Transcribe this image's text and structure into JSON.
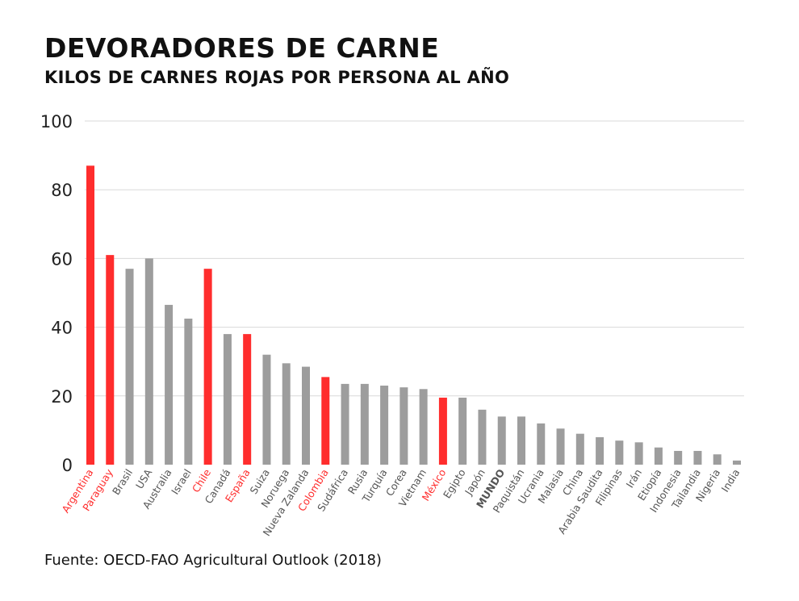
{
  "header": {
    "title": "DEVORADORES DE CARNE",
    "subtitle": "KILOS DE CARNES ROJAS POR PERSONA AL AÑO"
  },
  "footer": {
    "source": "Fuente: OECD-FAO Agricultural Outlook (2018)"
  },
  "colors": {
    "highlight": "#ff2d2d",
    "default": "#9d9d9d",
    "grid": "#d9d9d9",
    "axis_text": "#222222",
    "label_text": "#555555"
  },
  "chart_data": {
    "type": "bar",
    "title": "DEVORADORES DE CARNE",
    "subtitle": "KILOS DE CARNES ROJAS POR PERSONA AL AÑO",
    "xlabel": "",
    "ylabel": "",
    "ylim": [
      0,
      100
    ],
    "yticks": [
      0,
      20,
      40,
      60,
      80,
      100
    ],
    "grid": true,
    "categories": [
      "Argentina",
      "Paraguay",
      "Brasil",
      "USA",
      "Australia",
      "Israel",
      "Chile",
      "Canadá",
      "España",
      "Suiza",
      "Noruega",
      "Nueva Zalanda",
      "Colombia",
      "Sudáfrica",
      "Rusia",
      "Turquía",
      "Corea",
      "Vietnam",
      "México",
      "Egipto",
      "Japón",
      "MUNDO",
      "Paquistán",
      "Ucrania",
      "Malasia",
      "China",
      "Arabia Saudita",
      "Filipinas",
      "Irán",
      "Etiopía",
      "Indonesia",
      "Tailandia",
      "Nigeria",
      "India"
    ],
    "values": [
      87,
      61,
      57,
      60,
      46.5,
      42.5,
      57,
      38,
      38,
      32,
      29.5,
      28.5,
      25.5,
      23.5,
      23.5,
      23,
      22.5,
      22,
      19.5,
      19.5,
      16,
      14,
      14,
      12,
      10.5,
      9,
      8,
      7,
      6.5,
      5,
      4,
      4,
      3,
      1.2
    ],
    "highlighted": [
      "Argentina",
      "Paraguay",
      "Chile",
      "España",
      "Colombia",
      "México"
    ],
    "bold_labels": [
      "MUNDO"
    ]
  }
}
